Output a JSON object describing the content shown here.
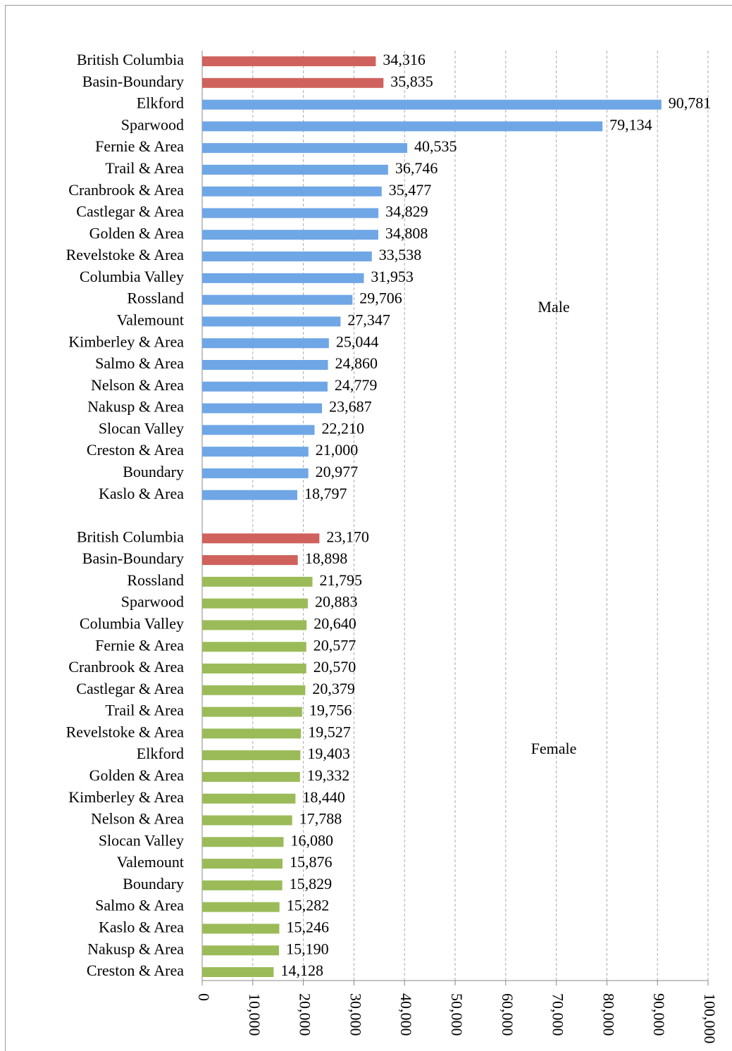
{
  "chart_data": {
    "type": "bar",
    "orientation": "horizontal",
    "categories": [
      "British Columbia",
      "Basin-Boundary",
      "Elkford",
      "Sparwood",
      "Fernie & Area",
      "Trail & Area",
      "Cranbrook & Area",
      "Castlegar & Area",
      "Golden & Area",
      "Revelstoke & Area",
      "Columbia Valley",
      "Rossland",
      "Valemount",
      "Kimberley & Area",
      "Salmo & Area",
      "Nelson & Area",
      "Nakusp & Area",
      "Slocan Valley",
      "Creston & Area",
      "Boundary",
      "Kaslo & Area",
      null,
      "British Columbia",
      "Basin-Boundary",
      "Rossland",
      "Sparwood",
      "Columbia Valley",
      "Fernie & Area",
      "Cranbrook & Area",
      "Castlegar & Area",
      "Trail & Area",
      "Revelstoke & Area",
      "Elkford",
      "Golden & Area",
      "Kimberley & Area",
      "Nelson & Area",
      "Slocan Valley",
      "Valemount",
      "Boundary",
      "Salmo & Area",
      "Kaslo & Area",
      "Nakusp & Area",
      "Creston & Area"
    ],
    "values": [
      34316,
      35835,
      90781,
      79134,
      40535,
      36746,
      35477,
      34829,
      34808,
      33538,
      31953,
      29706,
      27347,
      25044,
      24860,
      24779,
      23687,
      22210,
      21000,
      20977,
      18797,
      null,
      23170,
      18898,
      21795,
      20883,
      20640,
      20577,
      20570,
      20379,
      19756,
      19527,
      19403,
      19332,
      18440,
      17788,
      16080,
      15876,
      15829,
      15282,
      15246,
      15190,
      14128
    ],
    "value_labels": [
      "34,316",
      "35,835",
      "90,781",
      "79,134",
      "40,535",
      "36,746",
      "35,477",
      "34,829",
      "34,808",
      "33,538",
      "31,953",
      "29,706",
      "27,347",
      "25,044",
      "24,860",
      "24,779",
      "23,687",
      "22,210",
      "21,000",
      "20,977",
      "18,797",
      null,
      "23,170",
      "18,898",
      "21,795",
      "20,883",
      "20,640",
      "20,577",
      "20,570",
      "20,379",
      "19,756",
      "19,527",
      "19,403",
      "19,332",
      "18,440",
      "17,788",
      "16,080",
      "15,876",
      "15,829",
      "15,282",
      "15,246",
      "15,190",
      "14,128"
    ],
    "colors": [
      "#d0625e",
      "#d0625e",
      "#6fa6e6",
      "#6fa6e6",
      "#6fa6e6",
      "#6fa6e6",
      "#6fa6e6",
      "#6fa6e6",
      "#6fa6e6",
      "#6fa6e6",
      "#6fa6e6",
      "#6fa6e6",
      "#6fa6e6",
      "#6fa6e6",
      "#6fa6e6",
      "#6fa6e6",
      "#6fa6e6",
      "#6fa6e6",
      "#6fa6e6",
      "#6fa6e6",
      "#6fa6e6",
      null,
      "#d0625e",
      "#d0625e",
      "#9bbb59",
      "#9bbb59",
      "#9bbb59",
      "#9bbb59",
      "#9bbb59",
      "#9bbb59",
      "#9bbb59",
      "#9bbb59",
      "#9bbb59",
      "#9bbb59",
      "#9bbb59",
      "#9bbb59",
      "#9bbb59",
      "#9bbb59",
      "#9bbb59",
      "#9bbb59",
      "#9bbb59",
      "#9bbb59",
      "#9bbb59"
    ],
    "xlim": [
      0,
      100000
    ],
    "xticks": [
      0,
      {
        "value": 10000,
        "label": "10,000"
      },
      {
        "value": 20000,
        "label": "20,000"
      },
      {
        "value": 30000,
        "label": "30,000"
      },
      {
        "value": 40000,
        "label": "40,000"
      },
      {
        "value": 50000,
        "label": "50,000"
      },
      {
        "value": 60000,
        "label": "60,000"
      },
      {
        "value": 70000,
        "label": "70,000"
      },
      {
        "value": 80000,
        "label": "80,000"
      },
      {
        "value": 90000,
        "label": "90,000"
      },
      {
        "value": 100000,
        "label": "100,000"
      }
    ],
    "grid": true,
    "annotations": [
      "Male",
      "Female"
    ]
  }
}
